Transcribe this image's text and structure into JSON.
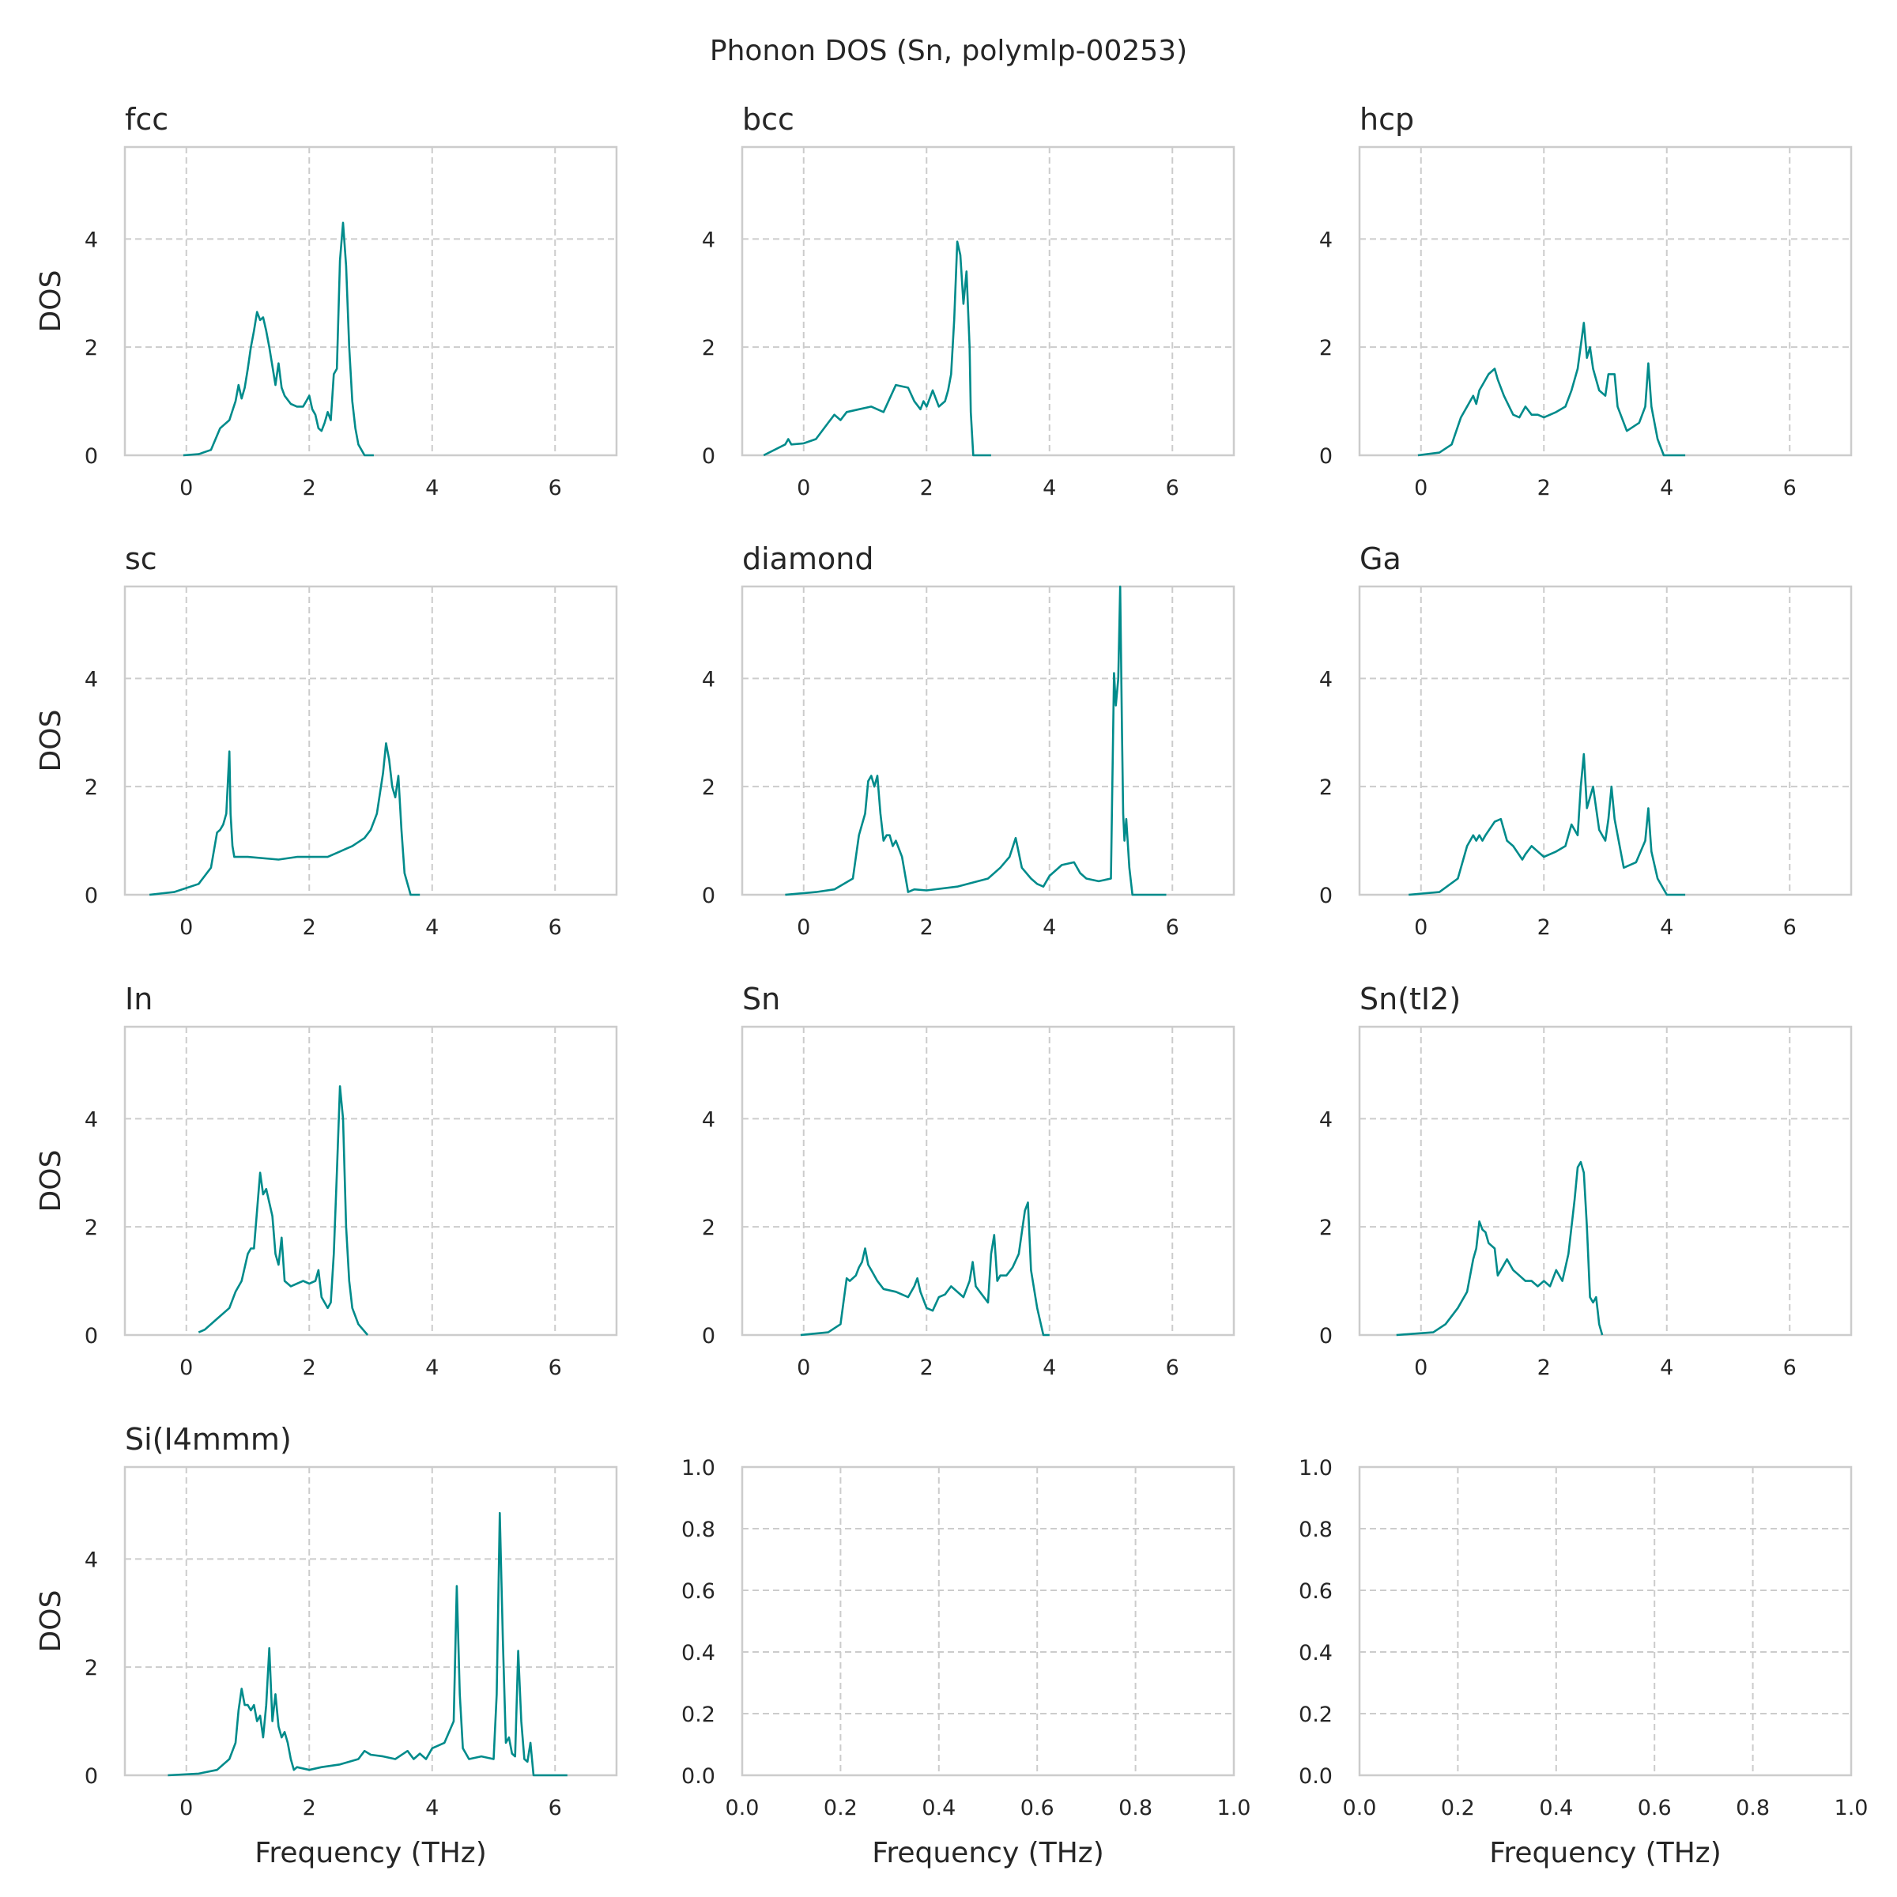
{
  "figure": {
    "title": "Phonon DOS (Sn, polymlp-00253)",
    "line_color": "#008b8b",
    "grid": true
  },
  "chart_data": [
    {
      "type": "line",
      "title": "fcc",
      "xlabel": "",
      "ylabel": "DOS",
      "xlim": [
        -1,
        7
      ],
      "ylim": [
        0,
        5.7
      ],
      "xticks": [
        0,
        2,
        4,
        6
      ],
      "yticks": [
        0,
        2,
        4
      ],
      "x": [
        -0.05,
        0.2,
        0.4,
        0.55,
        0.7,
        0.8,
        0.85,
        0.9,
        0.95,
        1.0,
        1.05,
        1.1,
        1.15,
        1.2,
        1.25,
        1.3,
        1.35,
        1.45,
        1.5,
        1.55,
        1.6,
        1.7,
        1.8,
        1.9,
        1.95,
        2.0,
        2.05,
        2.1,
        2.15,
        2.2,
        2.25,
        2.3,
        2.35,
        2.4,
        2.45,
        2.5,
        2.55,
        2.6,
        2.65,
        2.7,
        2.75,
        2.8,
        2.9,
        3.05
      ],
      "values": [
        0,
        0.02,
        0.1,
        0.5,
        0.65,
        1.0,
        1.3,
        1.05,
        1.25,
        1.6,
        2.0,
        2.3,
        2.65,
        2.5,
        2.55,
        2.3,
        2.0,
        1.3,
        1.7,
        1.25,
        1.1,
        0.95,
        0.9,
        0.9,
        1.0,
        1.1,
        0.85,
        0.75,
        0.5,
        0.45,
        0.6,
        0.8,
        0.65,
        1.5,
        1.6,
        3.6,
        4.3,
        3.5,
        2.0,
        1.0,
        0.5,
        0.2,
        0,
        0
      ]
    },
    {
      "type": "line",
      "title": "bcc",
      "xlabel": "",
      "ylabel": "",
      "xlim": [
        -1,
        7
      ],
      "ylim": [
        0,
        5.7
      ],
      "xticks": [
        0,
        2,
        4,
        6
      ],
      "yticks": [
        0,
        2,
        4
      ],
      "x": [
        -0.65,
        -0.3,
        -0.25,
        -0.2,
        0.0,
        0.2,
        0.4,
        0.5,
        0.6,
        0.7,
        0.9,
        1.1,
        1.3,
        1.5,
        1.7,
        1.8,
        1.9,
        1.95,
        2.0,
        2.1,
        2.2,
        2.3,
        2.35,
        2.4,
        2.45,
        2.5,
        2.55,
        2.6,
        2.65,
        2.7,
        2.72,
        2.76,
        3.05
      ],
      "values": [
        0,
        0.2,
        0.3,
        0.2,
        0.22,
        0.3,
        0.6,
        0.75,
        0.65,
        0.8,
        0.85,
        0.9,
        0.8,
        1.3,
        1.25,
        1.0,
        0.85,
        1.0,
        0.9,
        1.2,
        0.9,
        1.0,
        1.2,
        1.5,
        2.5,
        3.95,
        3.7,
        2.8,
        3.4,
        2.0,
        0.8,
        0,
        0
      ]
    },
    {
      "type": "line",
      "title": "hcp",
      "xlabel": "",
      "ylabel": "",
      "xlim": [
        -1,
        7
      ],
      "ylim": [
        0,
        5.7
      ],
      "xticks": [
        0,
        2,
        4,
        6
      ],
      "yticks": [
        0,
        2,
        4
      ],
      "x": [
        -0.05,
        0.3,
        0.5,
        0.65,
        0.75,
        0.85,
        0.9,
        0.95,
        1.0,
        1.1,
        1.2,
        1.25,
        1.35,
        1.5,
        1.6,
        1.7,
        1.8,
        1.9,
        2.0,
        2.2,
        2.35,
        2.45,
        2.55,
        2.65,
        2.7,
        2.75,
        2.8,
        2.9,
        3.0,
        3.05,
        3.1,
        3.15,
        3.2,
        3.35,
        3.55,
        3.65,
        3.7,
        3.75,
        3.85,
        3.95,
        4.3
      ],
      "values": [
        0,
        0.05,
        0.2,
        0.7,
        0.9,
        1.1,
        0.95,
        1.2,
        1.3,
        1.5,
        1.6,
        1.4,
        1.1,
        0.75,
        0.7,
        0.9,
        0.75,
        0.75,
        0.7,
        0.8,
        0.9,
        1.2,
        1.6,
        2.45,
        1.8,
        2.0,
        1.6,
        1.2,
        1.1,
        1.5,
        1.5,
        1.5,
        0.9,
        0.45,
        0.6,
        0.9,
        1.7,
        0.9,
        0.3,
        0,
        0
      ]
    },
    {
      "type": "line",
      "title": "sc",
      "xlabel": "",
      "ylabel": "DOS",
      "xlim": [
        -1,
        7
      ],
      "ylim": [
        0,
        5.7
      ],
      "xticks": [
        0,
        2,
        4,
        6
      ],
      "yticks": [
        0,
        2,
        4
      ],
      "x": [
        -0.6,
        -0.2,
        0.2,
        0.4,
        0.5,
        0.55,
        0.6,
        0.65,
        0.7,
        0.72,
        0.75,
        0.78,
        1.0,
        1.5,
        1.8,
        2.0,
        2.3,
        2.5,
        2.6,
        2.7,
        2.9,
        3.0,
        3.1,
        3.2,
        3.25,
        3.3,
        3.35,
        3.4,
        3.45,
        3.5,
        3.55,
        3.65,
        3.8
      ],
      "values": [
        0,
        0.05,
        0.2,
        0.5,
        1.15,
        1.2,
        1.3,
        1.5,
        2.65,
        1.5,
        0.9,
        0.7,
        0.7,
        0.65,
        0.7,
        0.7,
        0.7,
        0.8,
        0.85,
        0.9,
        1.05,
        1.2,
        1.5,
        2.25,
        2.8,
        2.5,
        2.0,
        1.8,
        2.2,
        1.2,
        0.4,
        0,
        0
      ]
    },
    {
      "type": "line",
      "title": "diamond",
      "xlabel": "",
      "ylabel": "",
      "xlim": [
        -1,
        7
      ],
      "ylim": [
        0,
        5.7
      ],
      "xticks": [
        0,
        2,
        4,
        6
      ],
      "yticks": [
        0,
        2,
        4
      ],
      "x": [
        -0.3,
        0.2,
        0.5,
        0.8,
        0.9,
        1.0,
        1.05,
        1.1,
        1.15,
        1.2,
        1.25,
        1.3,
        1.35,
        1.4,
        1.45,
        1.5,
        1.6,
        1.7,
        1.8,
        2.0,
        2.5,
        3.0,
        3.2,
        3.35,
        3.45,
        3.55,
        3.7,
        3.8,
        3.9,
        4.0,
        4.2,
        4.4,
        4.5,
        4.6,
        4.8,
        5.0,
        5.05,
        5.08,
        5.12,
        5.15,
        5.18,
        5.2,
        5.22,
        5.25,
        5.3,
        5.35,
        5.9
      ],
      "values": [
        0,
        0.05,
        0.1,
        0.3,
        1.1,
        1.5,
        2.1,
        2.2,
        2.0,
        2.2,
        1.5,
        1.0,
        1.1,
        1.1,
        0.9,
        1.0,
        0.7,
        0.05,
        0.1,
        0.08,
        0.15,
        0.3,
        0.5,
        0.7,
        1.05,
        0.5,
        0.3,
        0.2,
        0.15,
        0.35,
        0.55,
        0.6,
        0.4,
        0.3,
        0.25,
        0.3,
        4.1,
        3.5,
        4.0,
        5.7,
        3.0,
        1.5,
        1.0,
        1.4,
        0.5,
        0,
        0
      ]
    },
    {
      "type": "line",
      "title": "Ga",
      "xlabel": "",
      "ylabel": "",
      "xlim": [
        -1,
        7
      ],
      "ylim": [
        0,
        5.7
      ],
      "xticks": [
        0,
        2,
        4,
        6
      ],
      "yticks": [
        0,
        2,
        4
      ],
      "x": [
        -0.2,
        0.3,
        0.6,
        0.75,
        0.85,
        0.9,
        0.95,
        1.0,
        1.05,
        1.2,
        1.3,
        1.4,
        1.5,
        1.65,
        1.7,
        1.8,
        1.9,
        2.0,
        2.2,
        2.35,
        2.45,
        2.55,
        2.6,
        2.65,
        2.7,
        2.75,
        2.8,
        2.9,
        3.0,
        3.05,
        3.1,
        3.15,
        3.3,
        3.5,
        3.65,
        3.7,
        3.75,
        3.85,
        4.0,
        4.3
      ],
      "values": [
        0,
        0.05,
        0.3,
        0.9,
        1.1,
        1.0,
        1.1,
        1.0,
        1.1,
        1.35,
        1.4,
        1.0,
        0.9,
        0.65,
        0.75,
        0.9,
        0.8,
        0.7,
        0.8,
        0.9,
        1.3,
        1.1,
        2.0,
        2.6,
        1.6,
        1.8,
        2.0,
        1.2,
        1.0,
        1.4,
        2.0,
        1.4,
        0.5,
        0.6,
        1.0,
        1.6,
        0.8,
        0.3,
        0,
        0
      ]
    },
    {
      "type": "line",
      "title": "In",
      "xlabel": "",
      "ylabel": "DOS",
      "xlim": [
        -1,
        7
      ],
      "ylim": [
        0,
        5.7
      ],
      "xticks": [
        0,
        2,
        4,
        6
      ],
      "yticks": [
        0,
        2,
        4
      ],
      "x": [
        0.2,
        0.3,
        0.5,
        0.7,
        0.8,
        0.9,
        1.0,
        1.05,
        1.1,
        1.15,
        1.2,
        1.25,
        1.3,
        1.4,
        1.45,
        1.5,
        1.55,
        1.6,
        1.7,
        1.8,
        1.9,
        2.0,
        2.1,
        2.15,
        2.2,
        2.3,
        2.35,
        2.4,
        2.45,
        2.5,
        2.55,
        2.6,
        2.65,
        2.7,
        2.8,
        2.95
      ],
      "values": [
        0.05,
        0.1,
        0.3,
        0.5,
        0.8,
        1.0,
        1.5,
        1.6,
        1.6,
        2.3,
        3.0,
        2.6,
        2.7,
        2.2,
        1.5,
        1.3,
        1.8,
        1.0,
        0.9,
        0.95,
        1.0,
        0.95,
        1.0,
        1.2,
        0.7,
        0.5,
        0.6,
        1.5,
        3.0,
        4.6,
        4.0,
        2.0,
        1.0,
        0.5,
        0.2,
        0
      ]
    },
    {
      "type": "line",
      "title": "Sn",
      "xlabel": "",
      "ylabel": "",
      "xlim": [
        -1,
        7
      ],
      "ylim": [
        0,
        5.7
      ],
      "xticks": [
        0,
        2,
        4,
        6
      ],
      "yticks": [
        0,
        2,
        4
      ],
      "x": [
        -0.05,
        0.4,
        0.6,
        0.7,
        0.75,
        0.85,
        0.9,
        0.95,
        1.0,
        1.05,
        1.1,
        1.2,
        1.3,
        1.5,
        1.7,
        1.8,
        1.85,
        1.9,
        1.95,
        2.0,
        2.1,
        2.2,
        2.3,
        2.4,
        2.6,
        2.7,
        2.75,
        2.8,
        2.9,
        3.0,
        3.05,
        3.1,
        3.15,
        3.2,
        3.3,
        3.4,
        3.5,
        3.6,
        3.65,
        3.7,
        3.8,
        3.9,
        4.0
      ],
      "values": [
        0,
        0.05,
        0.2,
        1.05,
        1.0,
        1.1,
        1.25,
        1.35,
        1.6,
        1.3,
        1.2,
        1.0,
        0.85,
        0.8,
        0.7,
        0.9,
        1.05,
        0.8,
        0.65,
        0.5,
        0.45,
        0.7,
        0.75,
        0.9,
        0.7,
        1.0,
        1.35,
        0.9,
        0.75,
        0.6,
        1.5,
        1.85,
        1.0,
        1.1,
        1.1,
        1.25,
        1.5,
        2.3,
        2.45,
        1.2,
        0.5,
        0,
        0
      ]
    },
    {
      "type": "line",
      "title": "Sn(tI2)",
      "xlabel": "",
      "ylabel": "",
      "xlim": [
        -1,
        7
      ],
      "ylim": [
        0,
        5.7
      ],
      "xticks": [
        0,
        2,
        4,
        6
      ],
      "yticks": [
        0,
        2,
        4
      ],
      "x": [
        -0.4,
        0.2,
        0.4,
        0.6,
        0.75,
        0.85,
        0.9,
        0.95,
        1.0,
        1.05,
        1.1,
        1.2,
        1.25,
        1.3,
        1.4,
        1.5,
        1.6,
        1.7,
        1.8,
        1.9,
        2.0,
        2.1,
        2.2,
        2.3,
        2.4,
        2.5,
        2.55,
        2.6,
        2.65,
        2.7,
        2.75,
        2.8,
        2.85,
        2.88,
        2.9,
        2.95
      ],
      "values": [
        0,
        0.05,
        0.2,
        0.5,
        0.8,
        1.4,
        1.6,
        2.1,
        1.95,
        1.9,
        1.7,
        1.6,
        1.1,
        1.2,
        1.4,
        1.2,
        1.1,
        1.0,
        1.0,
        0.9,
        1.0,
        0.9,
        1.2,
        1.0,
        1.5,
        2.5,
        3.1,
        3.2,
        3.0,
        2.0,
        0.7,
        0.6,
        0.7,
        0.4,
        0.2,
        0
      ]
    },
    {
      "type": "line",
      "title": "Si(I4mmm)",
      "xlabel": "Frequency (THz)",
      "ylabel": "DOS",
      "xlim": [
        -1,
        7
      ],
      "ylim": [
        0,
        5.7
      ],
      "xticks": [
        0,
        2,
        4,
        6
      ],
      "yticks": [
        0,
        2,
        4
      ],
      "x": [
        -0.3,
        0.2,
        0.5,
        0.7,
        0.8,
        0.85,
        0.9,
        0.95,
        1.0,
        1.05,
        1.1,
        1.15,
        1.2,
        1.25,
        1.3,
        1.35,
        1.4,
        1.45,
        1.5,
        1.55,
        1.6,
        1.65,
        1.7,
        1.75,
        1.8,
        2.0,
        2.2,
        2.5,
        2.8,
        2.9,
        3.0,
        3.2,
        3.4,
        3.6,
        3.7,
        3.8,
        3.9,
        4.0,
        4.2,
        4.35,
        4.4,
        4.45,
        4.5,
        4.6,
        4.8,
        5.0,
        5.05,
        5.1,
        5.15,
        5.2,
        5.25,
        5.3,
        5.35,
        5.4,
        5.45,
        5.5,
        5.55,
        5.6,
        5.65,
        6.2
      ],
      "values": [
        0,
        0.03,
        0.1,
        0.3,
        0.6,
        1.2,
        1.6,
        1.3,
        1.3,
        1.2,
        1.3,
        1.0,
        1.1,
        0.7,
        1.3,
        2.35,
        1.0,
        1.5,
        0.9,
        0.7,
        0.8,
        0.6,
        0.3,
        0.1,
        0.15,
        0.1,
        0.15,
        0.2,
        0.3,
        0.45,
        0.38,
        0.35,
        0.3,
        0.45,
        0.3,
        0.4,
        0.3,
        0.5,
        0.6,
        1.0,
        3.5,
        1.5,
        0.5,
        0.3,
        0.35,
        0.3,
        1.5,
        4.85,
        2.5,
        0.6,
        0.7,
        0.4,
        0.35,
        2.3,
        1.0,
        0.3,
        0.25,
        0.6,
        0,
        0
      ]
    },
    {
      "type": "line",
      "title": "",
      "xlabel": "Frequency (THz)",
      "ylabel": "",
      "xlim": [
        0,
        1
      ],
      "ylim": [
        0,
        1
      ],
      "xticks": [
        0.0,
        0.2,
        0.4,
        0.6,
        0.8,
        1.0
      ],
      "yticks": [
        0.0,
        0.2,
        0.4,
        0.6,
        0.8,
        1.0
      ],
      "x": [],
      "values": []
    },
    {
      "type": "line",
      "title": "",
      "xlabel": "Frequency (THz)",
      "ylabel": "",
      "xlim": [
        0,
        1
      ],
      "ylim": [
        0,
        1
      ],
      "xticks": [
        0.0,
        0.2,
        0.4,
        0.6,
        0.8,
        1.0
      ],
      "yticks": [
        0.0,
        0.2,
        0.4,
        0.6,
        0.8,
        1.0
      ],
      "x": [],
      "values": []
    }
  ]
}
